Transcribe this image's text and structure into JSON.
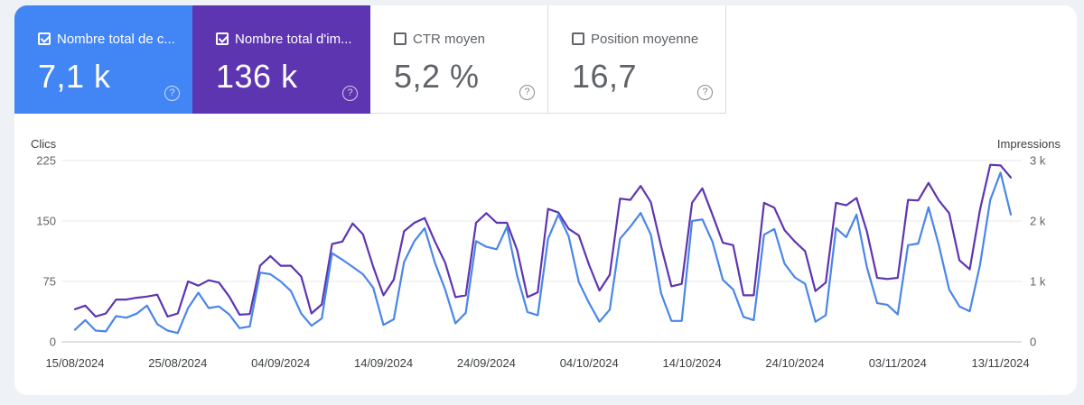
{
  "metrics": [
    {
      "label": "Nombre total de c...",
      "value": "7,1 k",
      "checked": true,
      "color": "#4285f4"
    },
    {
      "label": "Nombre total d'im...",
      "value": "136 k",
      "checked": true,
      "color": "#5e35b1"
    },
    {
      "label": "CTR moyen",
      "value": "5,2 %",
      "checked": false
    },
    {
      "label": "Position moyenne",
      "value": "16,7",
      "checked": false
    }
  ],
  "help_glyph": "?",
  "chart_data": {
    "type": "line",
    "ylabel_left": "Clics",
    "ylabel_right": "Impressions",
    "y_left_ticks": [
      "225",
      "150",
      "75",
      "0"
    ],
    "y_right_ticks": [
      "3 k",
      "2 k",
      "1 k",
      "0"
    ],
    "ylim_left": [
      0,
      225
    ],
    "ylim_right": [
      0,
      3000
    ],
    "x_tick_labels": [
      "15/08/2024",
      "25/08/2024",
      "04/09/2024",
      "14/09/2024",
      "24/09/2024",
      "04/10/2024",
      "14/10/2024",
      "24/10/2024",
      "03/11/2024",
      "13/11/2024"
    ],
    "x_start": "15/08/2024",
    "x_end": "13/11/2024",
    "grid": true,
    "series": [
      {
        "name": "Nombre total de clics",
        "axis": "left",
        "color": "#4a86e8",
        "values": [
          15,
          27,
          14,
          13,
          32,
          30,
          35,
          45,
          22,
          14,
          11,
          42,
          61,
          42,
          44,
          34,
          17,
          19,
          86,
          84,
          75,
          63,
          35,
          20,
          29,
          110,
          102,
          93,
          84,
          67,
          21,
          28,
          99,
          125,
          141,
          98,
          65,
          23,
          36,
          125,
          118,
          115,
          143,
          82,
          37,
          33,
          128,
          158,
          131,
          74,
          48,
          25,
          40,
          128,
          143,
          160,
          133,
          60,
          26,
          26,
          150,
          152,
          124,
          77,
          65,
          31,
          27,
          133,
          140,
          97,
          80,
          72,
          25,
          33,
          141,
          130,
          158,
          93,
          48,
          46,
          34,
          120,
          122,
          167,
          120,
          65,
          44,
          38,
          95,
          176,
          210,
          158
        ]
      },
      {
        "name": "Nombre total d'impressions",
        "axis": "right",
        "color": "#5e35b1",
        "values": [
          540,
          600,
          420,
          470,
          700,
          700,
          730,
          750,
          780,
          420,
          470,
          1000,
          930,
          1020,
          980,
          750,
          450,
          460,
          1260,
          1420,
          1260,
          1260,
          1080,
          470,
          620,
          1620,
          1660,
          1960,
          1780,
          1240,
          770,
          1030,
          1830,
          1970,
          2050,
          1660,
          1310,
          740,
          770,
          1970,
          2130,
          1970,
          1970,
          1520,
          740,
          820,
          2200,
          2140,
          1870,
          1760,
          1270,
          850,
          1110,
          2370,
          2350,
          2580,
          2310,
          1580,
          920,
          960,
          2300,
          2540,
          2100,
          1640,
          1600,
          770,
          770,
          2300,
          2220,
          1850,
          1660,
          1500,
          840,
          980,
          2300,
          2260,
          2380,
          1830,
          1060,
          1040,
          1060,
          2350,
          2340,
          2630,
          2340,
          2130,
          1350,
          1200,
          2180,
          2930,
          2920,
          2720
        ]
      }
    ]
  }
}
